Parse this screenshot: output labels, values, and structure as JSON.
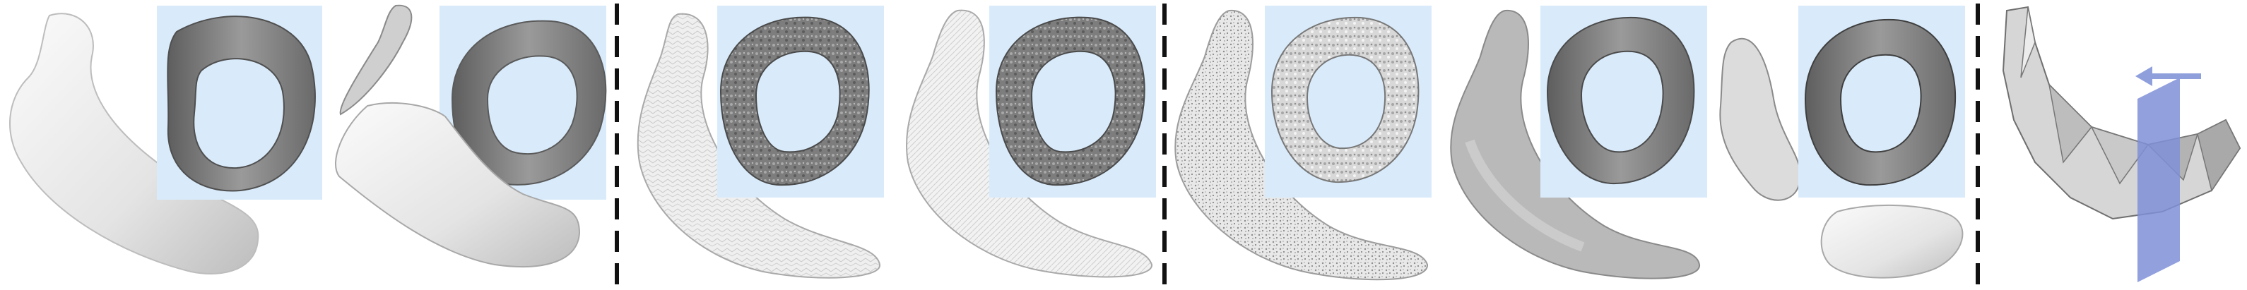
{
  "figure": {
    "description_free": true,
    "colors": {
      "background": "#ffffff",
      "inset_panel": "#d9ebfb",
      "mesh_light": "#f1f1f1",
      "mesh_mid": "#c9c9c9",
      "mesh_dark": "#8a8a8a",
      "ring_dark": "#6f6f6f",
      "separator": "#111111",
      "plane": "#7f8fd8",
      "arrow": "#8f9fdc"
    },
    "groups": [
      {
        "id": "group-1",
        "panels": [
          "panel-1",
          "panel-2"
        ]
      },
      {
        "id": "group-2",
        "panels": [
          "panel-3",
          "panel-4"
        ]
      },
      {
        "id": "group-3",
        "panels": [
          "panel-5",
          "panel-6",
          "panel-7"
        ]
      },
      {
        "id": "group-4",
        "panels": [
          "panel-8"
        ]
      }
    ],
    "separator_style": "dashed"
  }
}
